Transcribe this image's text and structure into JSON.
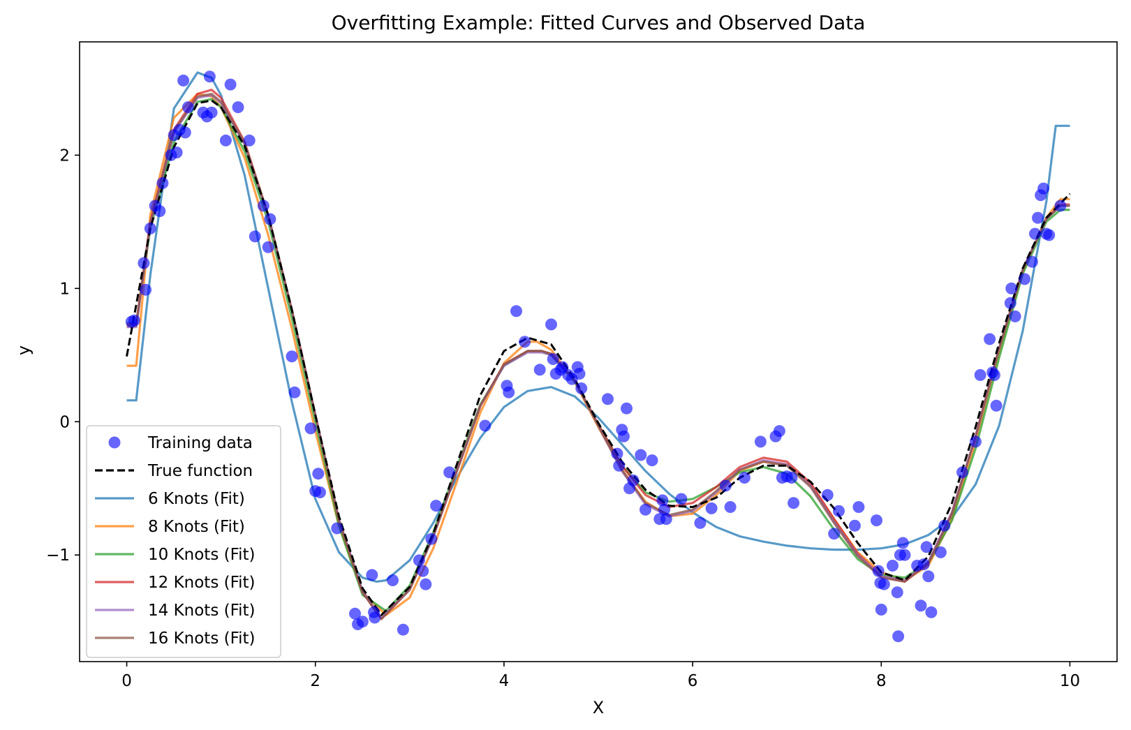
{
  "chart_data": {
    "type": "line",
    "title": "Overfitting Example: Fitted Curves and Observed Data",
    "xlabel": "X",
    "ylabel": "y",
    "xlim": [
      -0.5,
      10.5
    ],
    "ylim": [
      -1.8,
      2.85
    ],
    "xticks": [
      0,
      2,
      4,
      6,
      8,
      10
    ],
    "yticks": [
      -1,
      0,
      1,
      2
    ],
    "grid": false,
    "legend_position": "lower-left",
    "scatter": {
      "name": "Training data",
      "color": "#0000ff",
      "points": [
        [
          0.05,
          0.75
        ],
        [
          0.08,
          0.76
        ],
        [
          0.18,
          1.19
        ],
        [
          0.2,
          0.99
        ],
        [
          0.25,
          1.45
        ],
        [
          0.3,
          1.62
        ],
        [
          0.35,
          1.58
        ],
        [
          0.38,
          1.79
        ],
        [
          0.47,
          2.0
        ],
        [
          0.5,
          2.15
        ],
        [
          0.53,
          2.02
        ],
        [
          0.56,
          2.19
        ],
        [
          0.6,
          2.56
        ],
        [
          0.62,
          2.17
        ],
        [
          0.65,
          2.36
        ],
        [
          0.81,
          2.32
        ],
        [
          0.85,
          2.29
        ],
        [
          0.88,
          2.59
        ],
        [
          0.9,
          2.32
        ],
        [
          1.05,
          2.11
        ],
        [
          1.1,
          2.53
        ],
        [
          1.18,
          2.36
        ],
        [
          1.3,
          2.11
        ],
        [
          1.36,
          1.39
        ],
        [
          1.45,
          1.62
        ],
        [
          1.5,
          1.31
        ],
        [
          1.52,
          1.52
        ],
        [
          1.75,
          0.49
        ],
        [
          1.78,
          0.22
        ],
        [
          1.95,
          -0.05
        ],
        [
          2.0,
          -0.52
        ],
        [
          2.03,
          -0.39
        ],
        [
          2.05,
          -0.53
        ],
        [
          2.23,
          -0.8
        ],
        [
          2.42,
          -1.44
        ],
        [
          2.45,
          -1.52
        ],
        [
          2.5,
          -1.5
        ],
        [
          2.6,
          -1.15
        ],
        [
          2.62,
          -1.43
        ],
        [
          2.63,
          -1.47
        ],
        [
          2.82,
          -1.19
        ],
        [
          2.93,
          -1.56
        ],
        [
          3.1,
          -1.04
        ],
        [
          3.14,
          -1.12
        ],
        [
          3.17,
          -1.22
        ],
        [
          3.23,
          -0.88
        ],
        [
          3.28,
          -0.63
        ],
        [
          3.42,
          -0.38
        ],
        [
          3.8,
          -0.03
        ],
        [
          4.03,
          0.27
        ],
        [
          4.05,
          0.22
        ],
        [
          4.13,
          0.83
        ],
        [
          4.22,
          0.6
        ],
        [
          4.38,
          0.39
        ],
        [
          4.5,
          0.73
        ],
        [
          4.52,
          0.47
        ],
        [
          4.55,
          0.36
        ],
        [
          4.6,
          0.39
        ],
        [
          4.62,
          0.41
        ],
        [
          4.68,
          0.35
        ],
        [
          4.72,
          0.32
        ],
        [
          4.78,
          0.41
        ],
        [
          4.8,
          0.36
        ],
        [
          4.82,
          0.25
        ],
        [
          5.1,
          0.17
        ],
        [
          5.2,
          -0.24
        ],
        [
          5.22,
          -0.33
        ],
        [
          5.25,
          -0.06
        ],
        [
          5.27,
          -0.11
        ],
        [
          5.3,
          0.1
        ],
        [
          5.33,
          -0.5
        ],
        [
          5.37,
          -0.44
        ],
        [
          5.45,
          -0.25
        ],
        [
          5.5,
          -0.66
        ],
        [
          5.57,
          -0.29
        ],
        [
          5.65,
          -0.73
        ],
        [
          5.68,
          -0.59
        ],
        [
          5.7,
          -0.66
        ],
        [
          5.72,
          -0.73
        ],
        [
          5.88,
          -0.58
        ],
        [
          6.08,
          -0.76
        ],
        [
          6.2,
          -0.65
        ],
        [
          6.35,
          -0.48
        ],
        [
          6.4,
          -0.64
        ],
        [
          6.55,
          -0.42
        ],
        [
          6.72,
          -0.15
        ],
        [
          6.88,
          -0.11
        ],
        [
          6.92,
          -0.07
        ],
        [
          6.95,
          -0.42
        ],
        [
          7.0,
          -0.41
        ],
        [
          7.05,
          -0.42
        ],
        [
          7.07,
          -0.61
        ],
        [
          7.43,
          -0.55
        ],
        [
          7.5,
          -0.84
        ],
        [
          7.55,
          -0.67
        ],
        [
          7.72,
          -0.78
        ],
        [
          7.76,
          -0.64
        ],
        [
          7.95,
          -0.74
        ],
        [
          7.97,
          -1.12
        ],
        [
          7.99,
          -1.21
        ],
        [
          8.0,
          -1.41
        ],
        [
          8.03,
          -1.22
        ],
        [
          8.12,
          -1.08
        ],
        [
          8.17,
          -1.28
        ],
        [
          8.18,
          -1.61
        ],
        [
          8.2,
          -1.0
        ],
        [
          8.23,
          -0.91
        ],
        [
          8.25,
          -1.0
        ],
        [
          8.38,
          -1.08
        ],
        [
          8.42,
          -1.38
        ],
        [
          8.45,
          -1.07
        ],
        [
          8.48,
          -0.94
        ],
        [
          8.5,
          -1.16
        ],
        [
          8.53,
          -1.43
        ],
        [
          8.63,
          -0.98
        ],
        [
          8.67,
          -0.78
        ],
        [
          8.86,
          -0.38
        ],
        [
          9.0,
          -0.15
        ],
        [
          9.05,
          0.35
        ],
        [
          9.15,
          0.62
        ],
        [
          9.18,
          0.37
        ],
        [
          9.2,
          0.35
        ],
        [
          9.22,
          0.12
        ],
        [
          9.37,
          0.89
        ],
        [
          9.38,
          1.0
        ],
        [
          9.42,
          0.79
        ],
        [
          9.52,
          1.07
        ],
        [
          9.6,
          1.2
        ],
        [
          9.63,
          1.41
        ],
        [
          9.66,
          1.53
        ],
        [
          9.69,
          1.7
        ],
        [
          9.72,
          1.75
        ],
        [
          9.75,
          1.41
        ],
        [
          9.78,
          1.4
        ],
        [
          9.9,
          1.62
        ]
      ]
    },
    "series": [
      {
        "name": "True function",
        "color": "#000000",
        "dash": "dashed",
        "x": [
          0,
          0.25,
          0.5,
          0.75,
          0.9,
          1.0,
          1.25,
          1.5,
          1.75,
          2.0,
          2.25,
          2.5,
          2.7,
          3.0,
          3.25,
          3.5,
          3.75,
          4.0,
          4.25,
          4.5,
          4.75,
          5.0,
          5.25,
          5.5,
          5.75,
          6.0,
          6.25,
          6.5,
          6.75,
          7.0,
          7.25,
          7.5,
          7.75,
          8.0,
          8.25,
          8.5,
          8.75,
          9.0,
          9.25,
          9.5,
          9.75,
          10.0
        ],
        "y": [
          0.49,
          1.45,
          2.06,
          2.39,
          2.41,
          2.36,
          2.07,
          1.55,
          0.84,
          0.05,
          -0.71,
          -1.25,
          -1.45,
          -1.24,
          -0.84,
          -0.32,
          0.2,
          0.53,
          0.63,
          0.58,
          0.32,
          -0.01,
          -0.3,
          -0.51,
          -0.63,
          -0.64,
          -0.57,
          -0.42,
          -0.33,
          -0.33,
          -0.45,
          -0.65,
          -0.91,
          -1.13,
          -1.19,
          -1.01,
          -0.61,
          -0.04,
          0.59,
          1.15,
          1.53,
          1.71
        ]
      },
      {
        "name": "6 Knots (Fit)",
        "color": "#1f77b4",
        "x": [
          0,
          0.1,
          0.25,
          0.5,
          0.75,
          0.9,
          1.0,
          1.25,
          1.5,
          1.75,
          2.0,
          2.25,
          2.5,
          2.65,
          2.75,
          3.0,
          3.25,
          3.5,
          3.75,
          4.0,
          4.25,
          4.5,
          4.75,
          5.0,
          5.25,
          5.5,
          5.75,
          6.0,
          6.25,
          6.5,
          6.75,
          7.0,
          7.25,
          7.5,
          7.75,
          8.0,
          8.25,
          8.5,
          8.75,
          9.0,
          9.25,
          9.5,
          9.75,
          9.85,
          10.0
        ],
        "y": [
          0.16,
          0.16,
          1.1,
          2.35,
          2.62,
          2.58,
          2.45,
          1.85,
          1.0,
          0.15,
          -0.58,
          -0.98,
          -1.17,
          -1.2,
          -1.19,
          -1.04,
          -0.76,
          -0.42,
          -0.12,
          0.11,
          0.23,
          0.26,
          0.19,
          0.03,
          -0.17,
          -0.37,
          -0.54,
          -0.68,
          -0.79,
          -0.86,
          -0.9,
          -0.93,
          -0.95,
          -0.96,
          -0.96,
          -0.95,
          -0.92,
          -0.85,
          -0.72,
          -0.47,
          -0.03,
          0.68,
          1.65,
          2.22,
          2.22
        ]
      },
      {
        "name": "8 Knots (Fit)",
        "color": "#ff7f0e",
        "x": [
          0,
          0.1,
          0.25,
          0.5,
          0.75,
          0.9,
          1.0,
          1.25,
          1.5,
          1.75,
          2.0,
          2.25,
          2.5,
          2.75,
          3.0,
          3.25,
          3.5,
          3.75,
          4.0,
          4.25,
          4.35,
          4.5,
          4.75,
          5.0,
          5.25,
          5.5,
          5.75,
          6.0,
          6.25,
          6.5,
          6.75,
          7.0,
          7.25,
          7.5,
          7.75,
          8.0,
          8.25,
          8.5,
          8.75,
          9.0,
          9.25,
          9.5,
          9.75,
          9.9,
          10.0
        ],
        "y": [
          0.42,
          0.42,
          1.55,
          2.28,
          2.46,
          2.44,
          2.36,
          1.98,
          1.4,
          0.7,
          -0.07,
          -0.78,
          -1.28,
          -1.45,
          -1.32,
          -0.95,
          -0.45,
          0.07,
          0.44,
          0.6,
          0.6,
          0.54,
          0.3,
          -0.04,
          -0.36,
          -0.6,
          -0.71,
          -0.69,
          -0.55,
          -0.37,
          -0.3,
          -0.32,
          -0.47,
          -0.73,
          -0.98,
          -1.13,
          -1.19,
          -1.08,
          -0.73,
          -0.15,
          0.52,
          1.12,
          1.53,
          1.67,
          1.67
        ]
      },
      {
        "name": "10 Knots (Fit)",
        "color": "#2ca02c",
        "x": [
          0,
          0.1,
          0.25,
          0.5,
          0.75,
          0.9,
          1.0,
          1.25,
          1.5,
          1.75,
          2.0,
          2.25,
          2.5,
          2.75,
          3.0,
          3.25,
          3.5,
          3.75,
          4.0,
          4.25,
          4.4,
          4.5,
          4.75,
          5.0,
          5.25,
          5.5,
          5.75,
          6.0,
          6.25,
          6.5,
          6.75,
          7.0,
          7.25,
          7.5,
          7.75,
          8.0,
          8.25,
          8.5,
          8.75,
          9.0,
          9.25,
          9.5,
          9.75,
          9.9,
          10.0
        ],
        "y": [
          0.74,
          0.74,
          1.45,
          2.1,
          2.4,
          2.42,
          2.36,
          2.03,
          1.5,
          0.78,
          0.0,
          -0.78,
          -1.3,
          -1.42,
          -1.23,
          -0.83,
          -0.34,
          0.13,
          0.42,
          0.53,
          0.53,
          0.5,
          0.3,
          -0.02,
          -0.33,
          -0.53,
          -0.6,
          -0.58,
          -0.49,
          -0.38,
          -0.34,
          -0.39,
          -0.56,
          -0.81,
          -1.03,
          -1.15,
          -1.17,
          -1.06,
          -0.74,
          -0.2,
          0.48,
          1.11,
          1.5,
          1.59,
          1.59
        ]
      },
      {
        "name": "12 Knots (Fit)",
        "color": "#d62728",
        "x": [
          0,
          0.1,
          0.25,
          0.5,
          0.75,
          0.9,
          1.0,
          1.25,
          1.5,
          1.75,
          2.0,
          2.25,
          2.5,
          2.7,
          3.0,
          3.25,
          3.5,
          3.75,
          4.0,
          4.25,
          4.4,
          4.5,
          4.75,
          5.0,
          5.25,
          5.5,
          5.75,
          6.0,
          6.25,
          6.5,
          6.75,
          7.0,
          7.25,
          7.5,
          7.75,
          8.0,
          8.25,
          8.5,
          8.75,
          9.0,
          9.25,
          9.5,
          9.75,
          9.9,
          10.0
        ],
        "y": [
          0.73,
          0.73,
          1.5,
          2.19,
          2.46,
          2.49,
          2.43,
          2.1,
          1.55,
          0.84,
          0.05,
          -0.74,
          -1.28,
          -1.48,
          -1.26,
          -0.86,
          -0.37,
          0.12,
          0.43,
          0.53,
          0.53,
          0.51,
          0.31,
          -0.02,
          -0.33,
          -0.55,
          -0.64,
          -0.61,
          -0.49,
          -0.34,
          -0.27,
          -0.3,
          -0.46,
          -0.73,
          -0.99,
          -1.16,
          -1.2,
          -1.06,
          -0.68,
          -0.11,
          0.55,
          1.14,
          1.52,
          1.63,
          1.63
        ]
      },
      {
        "name": "14 Knots (Fit)",
        "color": "#9467bd",
        "x": [
          0,
          0.1,
          0.25,
          0.5,
          0.75,
          0.9,
          1.0,
          1.25,
          1.5,
          1.75,
          2.0,
          2.25,
          2.5,
          2.7,
          3.0,
          3.25,
          3.5,
          3.75,
          4.0,
          4.25,
          4.4,
          4.5,
          4.75,
          5.0,
          5.25,
          5.5,
          5.75,
          6.0,
          6.25,
          6.5,
          6.75,
          7.0,
          7.25,
          7.5,
          7.75,
          8.0,
          8.25,
          8.5,
          8.75,
          9.0,
          9.25,
          9.5,
          9.75,
          9.9,
          10.0
        ],
        "y": [
          0.71,
          0.71,
          1.48,
          2.17,
          2.43,
          2.45,
          2.39,
          2.08,
          1.54,
          0.84,
          0.05,
          -0.73,
          -1.27,
          -1.47,
          -1.26,
          -0.86,
          -0.37,
          0.12,
          0.42,
          0.52,
          0.52,
          0.5,
          0.31,
          -0.03,
          -0.37,
          -0.62,
          -0.71,
          -0.67,
          -0.53,
          -0.36,
          -0.29,
          -0.32,
          -0.48,
          -0.75,
          -1.0,
          -1.16,
          -1.19,
          -1.05,
          -0.68,
          -0.11,
          0.55,
          1.14,
          1.52,
          1.62,
          1.62
        ]
      },
      {
        "name": "16 Knots (Fit)",
        "color": "#8c564b",
        "x": [
          0,
          0.1,
          0.25,
          0.5,
          0.75,
          0.9,
          1.0,
          1.25,
          1.5,
          1.75,
          2.0,
          2.25,
          2.5,
          2.7,
          3.0,
          3.25,
          3.5,
          3.75,
          4.0,
          4.25,
          4.4,
          4.5,
          4.75,
          5.0,
          5.25,
          5.5,
          5.75,
          6.0,
          6.25,
          6.5,
          6.75,
          7.0,
          7.25,
          7.5,
          7.75,
          8.0,
          8.25,
          8.5,
          8.75,
          9.0,
          9.25,
          9.5,
          9.75,
          9.9,
          10.0
        ],
        "y": [
          0.72,
          0.72,
          1.49,
          2.18,
          2.44,
          2.46,
          2.4,
          2.09,
          1.55,
          0.84,
          0.05,
          -0.74,
          -1.28,
          -1.48,
          -1.26,
          -0.86,
          -0.37,
          0.12,
          0.43,
          0.53,
          0.53,
          0.51,
          0.31,
          -0.03,
          -0.36,
          -0.61,
          -0.7,
          -0.66,
          -0.52,
          -0.36,
          -0.3,
          -0.33,
          -0.49,
          -0.76,
          -1.01,
          -1.17,
          -1.2,
          -1.06,
          -0.69,
          -0.11,
          0.55,
          1.14,
          1.52,
          1.62,
          1.62
        ]
      }
    ]
  }
}
